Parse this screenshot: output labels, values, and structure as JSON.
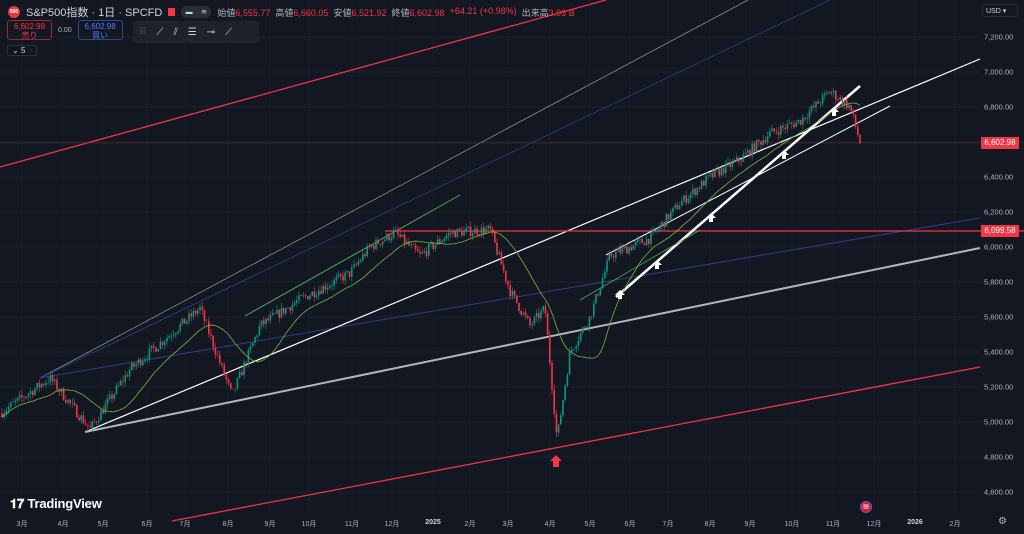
{
  "header": {
    "symbol_badge": "500",
    "title": "S&P500指数 · 1日 · SPCFD",
    "ohlc": [
      {
        "k": "始値",
        "v": "6,555.77"
      },
      {
        "k": "高値",
        "v": "6,660.05"
      },
      {
        "k": "安値",
        "v": "6,521.92"
      },
      {
        "k": "終値",
        "v": "6,602.98"
      },
      {
        "k": "",
        "v": "+64.21 (+0.98%)"
      },
      {
        "k": "出来高",
        "v": "3.93 B"
      }
    ]
  },
  "trade": {
    "sell_price": "6,602.98",
    "sell_label": "売り",
    "spread": "0.00",
    "buy_price": "6,602.98",
    "buy_label": "買い"
  },
  "indicators": {
    "count": "5"
  },
  "currency": "USD",
  "price_axis": [
    "7,200.00",
    "7,000.00",
    "6,800.00",
    "6,400.00",
    "6,200.00",
    "6,000.00",
    "5,800.00",
    "5,600.00",
    "5,400.00",
    "5,200.00",
    "5,000.00",
    "4,800.00",
    "4,600.00"
  ],
  "price_labels": {
    "last": "6,602.98",
    "level": "6,099.58"
  },
  "time_axis": [
    "3月",
    "4月",
    "5月",
    "6月",
    "7月",
    "8月",
    "9月",
    "10月",
    "11月",
    "12月",
    "2025",
    "2月",
    "3月",
    "4月",
    "5月",
    "6月",
    "7月",
    "8月",
    "9月",
    "10月",
    "11月",
    "12月",
    "2026",
    "2月"
  ],
  "brand": "TradingView",
  "colors": {
    "up": "#089981",
    "down": "#f23645",
    "bg": "#131722"
  },
  "price_path": [
    [
      0,
      5050
    ],
    [
      50,
      5250
    ],
    [
      90,
      4960
    ],
    [
      130,
      5300
    ],
    [
      170,
      5500
    ],
    [
      200,
      5650
    ],
    [
      232,
      5150
    ],
    [
      260,
      5550
    ],
    [
      300,
      5700
    ],
    [
      350,
      5850
    ],
    [
      370,
      6000
    ],
    [
      395,
      6080
    ],
    [
      420,
      5950
    ],
    [
      450,
      6080
    ],
    [
      490,
      6100
    ],
    [
      510,
      5750
    ],
    [
      530,
      5550
    ],
    [
      545,
      5650
    ],
    [
      557,
      4900
    ],
    [
      570,
      5400
    ],
    [
      590,
      5600
    ],
    [
      610,
      5950
    ],
    [
      650,
      6050
    ],
    [
      680,
      6250
    ],
    [
      710,
      6400
    ],
    [
      740,
      6500
    ],
    [
      770,
      6650
    ],
    [
      800,
      6720
    ],
    [
      830,
      6890
    ],
    [
      850,
      6800
    ],
    [
      862,
      6560
    ]
  ]
}
